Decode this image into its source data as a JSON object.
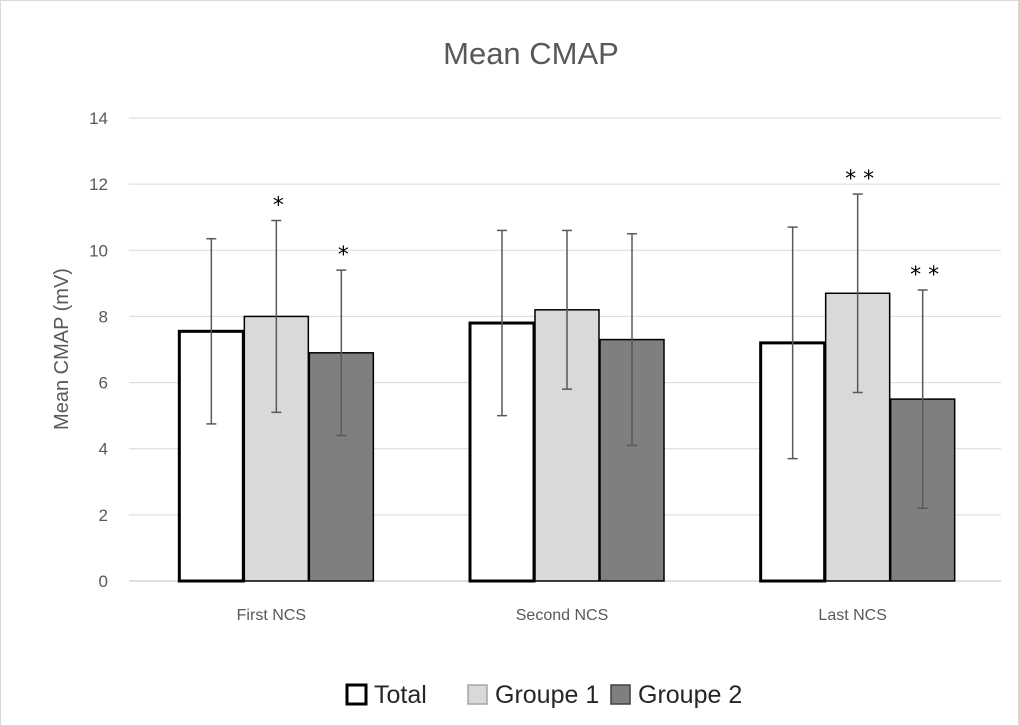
{
  "chart_data": {
    "type": "bar",
    "title": "Mean CMAP",
    "xlabel": "",
    "ylabel": "Mean CMAP (mV)",
    "ylim": [
      0,
      14
    ],
    "yticks": [
      0,
      2,
      4,
      6,
      8,
      10,
      12,
      14
    ],
    "grid": true,
    "legend_position": "bottom",
    "categories": [
      "First NCS",
      "Second NCS",
      "Last NCS"
    ],
    "series": [
      {
        "name": "Total",
        "color": "#ffffff",
        "stroke": "#000000",
        "values": [
          7.55,
          7.8,
          7.2
        ],
        "error_low": [
          4.75,
          5.0,
          3.7
        ],
        "error_high": [
          10.35,
          10.6,
          10.7
        ],
        "significance": [
          "",
          "",
          ""
        ]
      },
      {
        "name": "Groupe 1",
        "color": "#d9d9d9",
        "stroke": "#000000",
        "values": [
          8.0,
          8.2,
          8.7
        ],
        "error_low": [
          5.1,
          5.8,
          5.7
        ],
        "error_high": [
          10.9,
          10.6,
          11.7
        ],
        "significance": [
          "*",
          "",
          "**"
        ]
      },
      {
        "name": "Groupe 2",
        "color": "#7f7f7f",
        "stroke": "#000000",
        "values": [
          6.9,
          7.3,
          5.5
        ],
        "error_low": [
          4.4,
          4.1,
          2.2
        ],
        "error_high": [
          9.4,
          10.5,
          8.8
        ],
        "significance": [
          "*",
          "",
          "**"
        ]
      }
    ]
  }
}
